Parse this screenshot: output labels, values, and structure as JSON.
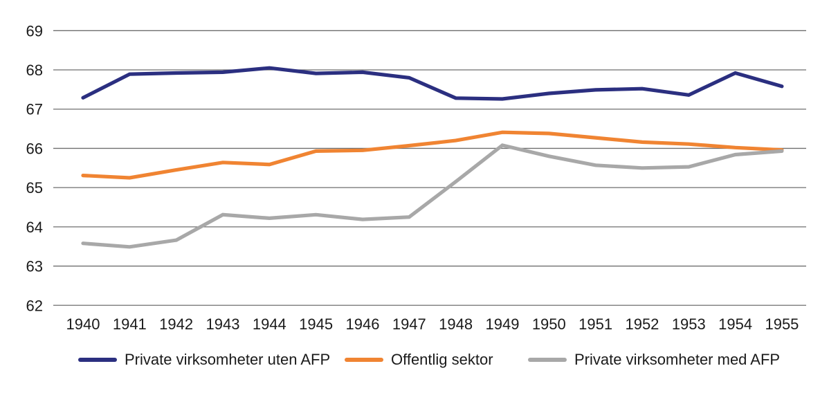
{
  "chart_data": {
    "type": "line",
    "title": "",
    "xlabel": "",
    "ylabel": "",
    "categories": [
      "1940",
      "1941",
      "1942",
      "1943",
      "1944",
      "1945",
      "1946",
      "1947",
      "1948",
      "1949",
      "1950",
      "1951",
      "1952",
      "1953",
      "1954",
      "1955"
    ],
    "series": [
      {
        "name": "Private virksomheter uten AFP",
        "color": "#2b2f80",
        "values": [
          67.29,
          67.89,
          67.92,
          67.94,
          68.05,
          67.91,
          67.94,
          67.8,
          67.28,
          67.26,
          67.4,
          67.49,
          67.52,
          67.36,
          67.92,
          67.58
        ]
      },
      {
        "name": "Offentlig sektor",
        "color": "#f08432",
        "values": [
          65.31,
          65.25,
          65.45,
          65.64,
          65.59,
          65.93,
          65.95,
          66.07,
          66.2,
          66.41,
          66.38,
          66.27,
          66.16,
          66.11,
          66.02,
          65.96
        ]
      },
      {
        "name": "Private virksomheter med AFP",
        "color": "#a8a8a8",
        "values": [
          63.58,
          63.49,
          63.66,
          64.31,
          64.22,
          64.31,
          64.19,
          64.25,
          65.15,
          66.08,
          65.8,
          65.57,
          65.5,
          65.53,
          65.84,
          65.93
        ]
      }
    ],
    "ylim": [
      62,
      69
    ],
    "yticks": [
      69,
      68,
      67,
      66,
      65,
      64,
      63,
      62
    ],
    "grid": "horizontal",
    "legend_position": "bottom"
  },
  "colors": {
    "grid_line": "#6e6e6e",
    "tick_text": "#1a1a1a",
    "background": "#ffffff"
  }
}
